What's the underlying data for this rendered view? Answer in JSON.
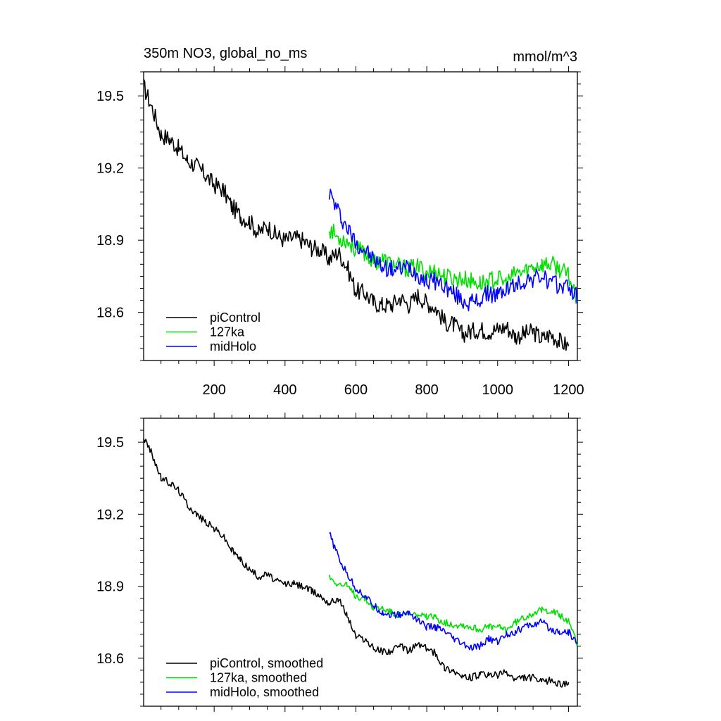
{
  "chart_data": [
    {
      "type": "line",
      "title": "350m NO3, global_no_ms",
      "units": "mmol/m^3",
      "xlim": [
        1,
        1225
      ],
      "ylim": [
        18.4,
        19.6
      ],
      "xticks": [
        200,
        400,
        600,
        800,
        1000,
        1200
      ],
      "xtick_labels": [
        "200",
        "400",
        "600",
        "800",
        "1000",
        "1200"
      ],
      "yticks": [
        19.5,
        19.2,
        18.9,
        18.6
      ],
      "ytick_labels": [
        "19.5",
        "19.2",
        "18.9",
        "18.6"
      ],
      "legend_position": "bottom-left",
      "series": [
        {
          "name": "piControl",
          "color": "#000000",
          "points": [
            [
              1,
              19.54
            ],
            [
              25,
              19.45
            ],
            [
              50,
              19.34
            ],
            [
              75,
              19.32
            ],
            [
              100,
              19.28
            ],
            [
              125,
              19.23
            ],
            [
              150,
              19.21
            ],
            [
              175,
              19.17
            ],
            [
              200,
              19.13
            ],
            [
              225,
              19.11
            ],
            [
              250,
              19.04
            ],
            [
              275,
              19.0
            ],
            [
              300,
              18.98
            ],
            [
              325,
              18.93
            ],
            [
              350,
              18.96
            ],
            [
              375,
              18.92
            ],
            [
              400,
              18.9
            ],
            [
              425,
              18.91
            ],
            [
              450,
              18.9
            ],
            [
              475,
              18.87
            ],
            [
              500,
              18.86
            ],
            [
              525,
              18.82
            ],
            [
              550,
              18.85
            ],
            [
              575,
              18.79
            ],
            [
              600,
              18.69
            ],
            [
              625,
              18.68
            ],
            [
              650,
              18.64
            ],
            [
              675,
              18.63
            ],
            [
              700,
              18.63
            ],
            [
              725,
              18.66
            ],
            [
              750,
              18.63
            ],
            [
              775,
              18.67
            ],
            [
              800,
              18.64
            ],
            [
              825,
              18.62
            ],
            [
              850,
              18.56
            ],
            [
              875,
              18.55
            ],
            [
              900,
              18.51
            ],
            [
              925,
              18.52
            ],
            [
              950,
              18.53
            ],
            [
              975,
              18.52
            ],
            [
              1000,
              18.53
            ],
            [
              1025,
              18.54
            ],
            [
              1050,
              18.5
            ],
            [
              1075,
              18.51
            ],
            [
              1100,
              18.52
            ],
            [
              1125,
              18.49
            ],
            [
              1150,
              18.51
            ],
            [
              1175,
              18.48
            ],
            [
              1200,
              18.46
            ]
          ]
        },
        {
          "name": "127ka",
          "color": "#00e000",
          "points": [
            [
              525,
              18.95
            ],
            [
              550,
              18.91
            ],
            [
              575,
              18.9
            ],
            [
              600,
              18.86
            ],
            [
              625,
              18.85
            ],
            [
              650,
              18.81
            ],
            [
              675,
              18.82
            ],
            [
              700,
              18.8
            ],
            [
              725,
              18.79
            ],
            [
              750,
              18.78
            ],
            [
              775,
              18.79
            ],
            [
              800,
              18.77
            ],
            [
              825,
              18.77
            ],
            [
              850,
              18.75
            ],
            [
              875,
              18.74
            ],
            [
              900,
              18.74
            ],
            [
              925,
              18.73
            ],
            [
              950,
              18.72
            ],
            [
              975,
              18.73
            ],
            [
              1000,
              18.74
            ],
            [
              1025,
              18.72
            ],
            [
              1050,
              18.76
            ],
            [
              1075,
              18.77
            ],
            [
              1100,
              18.79
            ],
            [
              1125,
              18.8
            ],
            [
              1150,
              18.8
            ],
            [
              1175,
              18.78
            ],
            [
              1200,
              18.75
            ],
            [
              1225,
              18.66
            ]
          ]
        },
        {
          "name": "midHolo",
          "color": "#0000ff",
          "points": [
            [
              525,
              19.1
            ],
            [
              540,
              19.05
            ],
            [
              560,
              18.99
            ],
            [
              580,
              18.94
            ],
            [
              600,
              18.89
            ],
            [
              625,
              18.86
            ],
            [
              650,
              18.82
            ],
            [
              675,
              18.79
            ],
            [
              700,
              18.78
            ],
            [
              725,
              18.78
            ],
            [
              750,
              18.79
            ],
            [
              775,
              18.76
            ],
            [
              800,
              18.73
            ],
            [
              825,
              18.73
            ],
            [
              850,
              18.71
            ],
            [
              875,
              18.68
            ],
            [
              900,
              18.65
            ],
            [
              925,
              18.64
            ],
            [
              950,
              18.65
            ],
            [
              975,
              18.68
            ],
            [
              1000,
              18.67
            ],
            [
              1025,
              18.7
            ],
            [
              1050,
              18.71
            ],
            [
              1075,
              18.73
            ],
            [
              1100,
              18.74
            ],
            [
              1125,
              18.75
            ],
            [
              1150,
              18.72
            ],
            [
              1175,
              18.71
            ],
            [
              1200,
              18.71
            ],
            [
              1225,
              18.66
            ]
          ]
        }
      ]
    },
    {
      "type": "line",
      "xlim": [
        1,
        1225
      ],
      "ylim": [
        18.4,
        19.6
      ],
      "xticks": [
        200,
        400,
        600,
        800,
        1000,
        1200
      ],
      "yticks": [
        19.5,
        19.2,
        18.9,
        18.6
      ],
      "ytick_labels": [
        "19.5",
        "19.2",
        "18.9",
        "18.6"
      ],
      "legend_position": "bottom-left",
      "series": [
        {
          "name": "piControl, smoothed",
          "color": "#000000",
          "points": [
            [
              1,
              19.52
            ],
            [
              25,
              19.45
            ],
            [
              50,
              19.35
            ],
            [
              75,
              19.33
            ],
            [
              100,
              19.3
            ],
            [
              125,
              19.24
            ],
            [
              150,
              19.2
            ],
            [
              175,
              19.17
            ],
            [
              200,
              19.14
            ],
            [
              225,
              19.11
            ],
            [
              250,
              19.05
            ],
            [
              275,
              19.01
            ],
            [
              300,
              18.97
            ],
            [
              325,
              18.94
            ],
            [
              350,
              18.95
            ],
            [
              375,
              18.92
            ],
            [
              400,
              18.91
            ],
            [
              425,
              18.91
            ],
            [
              450,
              18.9
            ],
            [
              475,
              18.88
            ],
            [
              500,
              18.86
            ],
            [
              525,
              18.83
            ],
            [
              550,
              18.85
            ],
            [
              575,
              18.78
            ],
            [
              600,
              18.69
            ],
            [
              625,
              18.68
            ],
            [
              650,
              18.64
            ],
            [
              675,
              18.63
            ],
            [
              700,
              18.63
            ],
            [
              725,
              18.65
            ],
            [
              750,
              18.63
            ],
            [
              775,
              18.66
            ],
            [
              800,
              18.64
            ],
            [
              825,
              18.62
            ],
            [
              850,
              18.56
            ],
            [
              875,
              18.55
            ],
            [
              900,
              18.52
            ],
            [
              925,
              18.52
            ],
            [
              950,
              18.53
            ],
            [
              975,
              18.53
            ],
            [
              1000,
              18.53
            ],
            [
              1025,
              18.54
            ],
            [
              1050,
              18.51
            ],
            [
              1075,
              18.52
            ],
            [
              1100,
              18.52
            ],
            [
              1125,
              18.5
            ],
            [
              1150,
              18.51
            ],
            [
              1175,
              18.49
            ],
            [
              1200,
              18.5
            ]
          ]
        },
        {
          "name": "127ka, smoothed",
          "color": "#00e000",
          "points": [
            [
              525,
              18.94
            ],
            [
              550,
              18.91
            ],
            [
              575,
              18.9
            ],
            [
              600,
              18.86
            ],
            [
              625,
              18.85
            ],
            [
              650,
              18.81
            ],
            [
              675,
              18.81
            ],
            [
              700,
              18.79
            ],
            [
              725,
              18.78
            ],
            [
              750,
              18.78
            ],
            [
              775,
              18.78
            ],
            [
              800,
              18.77
            ],
            [
              825,
              18.77
            ],
            [
              850,
              18.75
            ],
            [
              875,
              18.74
            ],
            [
              900,
              18.74
            ],
            [
              925,
              18.73
            ],
            [
              950,
              18.72
            ],
            [
              975,
              18.73
            ],
            [
              1000,
              18.73
            ],
            [
              1025,
              18.72
            ],
            [
              1050,
              18.75
            ],
            [
              1075,
              18.77
            ],
            [
              1100,
              18.79
            ],
            [
              1125,
              18.8
            ],
            [
              1150,
              18.8
            ],
            [
              1175,
              18.78
            ],
            [
              1200,
              18.75
            ],
            [
              1225,
              18.66
            ]
          ]
        },
        {
          "name": "midHolo, smoothed",
          "color": "#0000ff",
          "points": [
            [
              525,
              19.12
            ],
            [
              540,
              19.06
            ],
            [
              560,
              18.99
            ],
            [
              580,
              18.94
            ],
            [
              600,
              18.89
            ],
            [
              625,
              18.86
            ],
            [
              650,
              18.82
            ],
            [
              675,
              18.79
            ],
            [
              700,
              18.78
            ],
            [
              725,
              18.78
            ],
            [
              750,
              18.79
            ],
            [
              775,
              18.76
            ],
            [
              800,
              18.73
            ],
            [
              825,
              18.73
            ],
            [
              850,
              18.71
            ],
            [
              875,
              18.68
            ],
            [
              900,
              18.66
            ],
            [
              925,
              18.64
            ],
            [
              950,
              18.65
            ],
            [
              975,
              18.68
            ],
            [
              1000,
              18.67
            ],
            [
              1025,
              18.7
            ],
            [
              1050,
              18.71
            ],
            [
              1075,
              18.73
            ],
            [
              1100,
              18.74
            ],
            [
              1125,
              18.75
            ],
            [
              1150,
              18.72
            ],
            [
              1175,
              18.71
            ],
            [
              1200,
              18.71
            ],
            [
              1225,
              18.66
            ]
          ]
        }
      ]
    }
  ]
}
